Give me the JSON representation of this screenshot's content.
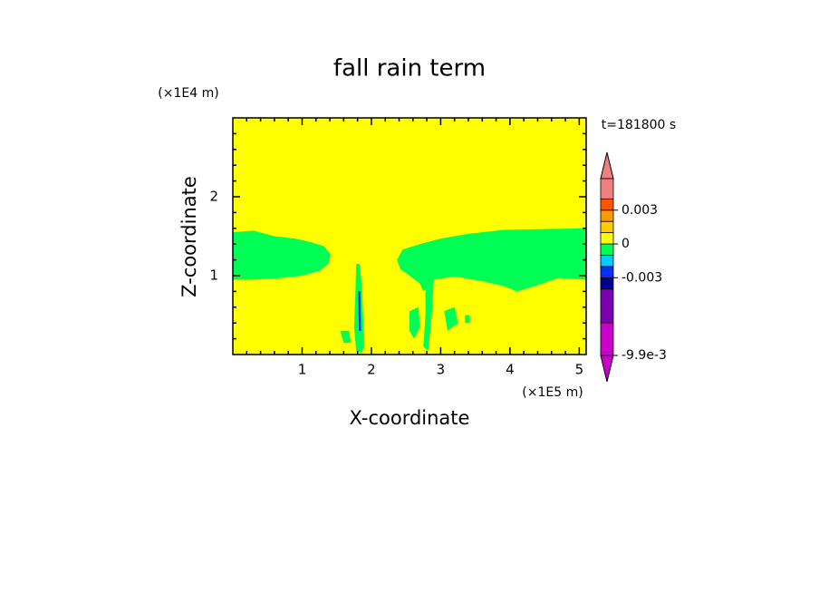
{
  "chart_data": {
    "type": "contour",
    "title": "fall rain term",
    "x_label": "X-coordinate",
    "y_label": "Z-coordinate",
    "x_unit": "(×1E5 m)",
    "y_unit": "(×1E4 m)",
    "annotation": "t=181800 s",
    "xlim": [
      0,
      5.1
    ],
    "ylim": [
      0,
      3
    ],
    "xticks": [
      1,
      2,
      3,
      4,
      5
    ],
    "yticks": [
      1,
      2
    ],
    "xminor_ticks": [
      0.2,
      0.4,
      0.6,
      0.8,
      1.2,
      1.4,
      1.6,
      1.8,
      2.2,
      2.4,
      2.6,
      2.8,
      3.2,
      3.4,
      3.6,
      3.8,
      4.2,
      4.4,
      4.6,
      4.8
    ],
    "yminor_ticks": [
      0.2,
      0.4,
      0.6,
      0.8,
      1.2,
      1.4,
      1.6,
      1.8,
      2.2,
      2.4,
      2.6,
      2.8
    ],
    "background_color": "#ffff00",
    "regions": [
      {
        "color": "#00ff55",
        "points": [
          [
            0,
            1.55
          ],
          [
            0.3,
            1.57
          ],
          [
            0.6,
            1.5
          ],
          [
            0.9,
            1.47
          ],
          [
            1.15,
            1.42
          ],
          [
            1.32,
            1.37
          ],
          [
            1.41,
            1.27
          ],
          [
            1.38,
            1.15
          ],
          [
            1.25,
            1.06
          ],
          [
            1.0,
            1.0
          ],
          [
            0.7,
            0.97
          ],
          [
            0.3,
            0.95
          ],
          [
            0,
            0.95
          ]
        ]
      },
      {
        "color": "#00ff55",
        "points": [
          [
            2.37,
            1.2
          ],
          [
            2.45,
            1.33
          ],
          [
            2.7,
            1.4
          ],
          [
            3.0,
            1.47
          ],
          [
            3.4,
            1.53
          ],
          [
            3.9,
            1.58
          ],
          [
            4.5,
            1.59
          ],
          [
            5.1,
            1.6
          ],
          [
            5.1,
            0.95
          ],
          [
            4.7,
            0.97
          ],
          [
            4.3,
            0.85
          ],
          [
            4.1,
            0.8
          ],
          [
            3.9,
            0.87
          ],
          [
            3.6,
            0.93
          ],
          [
            3.2,
            0.99
          ],
          [
            2.9,
            0.95
          ],
          [
            2.75,
            0.8
          ],
          [
            2.7,
            0.9
          ],
          [
            2.55,
            1.0
          ],
          [
            2.42,
            1.08
          ]
        ]
      },
      {
        "color": "#00ff55",
        "points": [
          [
            1.78,
            1.15
          ],
          [
            1.83,
            1.15
          ],
          [
            1.86,
            0.9
          ],
          [
            1.88,
            0.5
          ],
          [
            1.9,
            0.1
          ],
          [
            1.85,
            0.02
          ],
          [
            1.78,
            0.05
          ],
          [
            1.75,
            0.35
          ],
          [
            1.77,
            0.8
          ]
        ]
      },
      {
        "color": "#00ff55",
        "points": [
          [
            2.78,
            0.95
          ],
          [
            2.9,
            0.95
          ],
          [
            2.88,
            0.6
          ],
          [
            2.85,
            0.3
          ],
          [
            2.82,
            0.05
          ],
          [
            2.75,
            0.1
          ],
          [
            2.78,
            0.5
          ]
        ]
      },
      {
        "color": "#00ff55",
        "points": [
          [
            2.55,
            0.55
          ],
          [
            2.68,
            0.6
          ],
          [
            2.7,
            0.35
          ],
          [
            2.62,
            0.2
          ],
          [
            2.55,
            0.3
          ]
        ]
      },
      {
        "color": "#00ff55",
        "points": [
          [
            3.05,
            0.55
          ],
          [
            3.2,
            0.6
          ],
          [
            3.25,
            0.4
          ],
          [
            3.1,
            0.3
          ]
        ]
      },
      {
        "color": "#00ff55",
        "points": [
          [
            3.35,
            0.5
          ],
          [
            3.42,
            0.5
          ],
          [
            3.42,
            0.4
          ],
          [
            3.35,
            0.4
          ]
        ]
      },
      {
        "color": "#00ff55",
        "points": [
          [
            1.55,
            0.3
          ],
          [
            1.68,
            0.3
          ],
          [
            1.7,
            0.15
          ],
          [
            1.6,
            0.15
          ]
        ]
      },
      {
        "color": "#0030ff",
        "points": [
          [
            1.81,
            0.8
          ],
          [
            1.84,
            0.8
          ],
          [
            1.85,
            0.3
          ],
          [
            1.82,
            0.3
          ]
        ]
      }
    ],
    "colorbar": {
      "levels": [
        -0.0099,
        -0.007,
        -0.004,
        -0.003,
        -0.002,
        -0.001,
        0,
        0.001,
        0.002,
        0.003,
        0.004,
        0.0058
      ],
      "colors": [
        "#cc00cc",
        "#cc00cc",
        "#7a00b0",
        "#000090",
        "#0030ff",
        "#00ccff",
        "#00ff55",
        "#ffff00",
        "#ffcc00",
        "#ff9900",
        "#ff5500",
        "#f08080",
        "#f08080"
      ],
      "ticks": [
        0.003,
        0,
        -0.003,
        {
          "value": -0.0099,
          "label": "-9.9e-3"
        }
      ]
    }
  }
}
